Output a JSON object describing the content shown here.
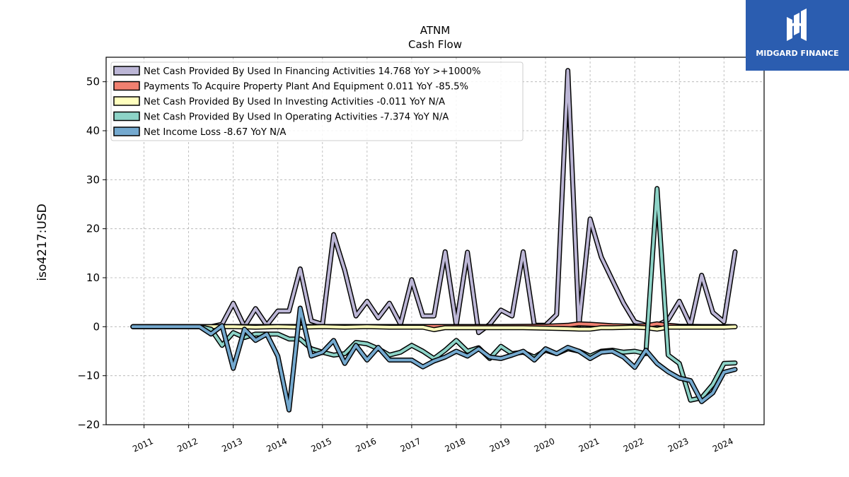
{
  "chart_data": {
    "type": "line",
    "title": "ATNM",
    "subtitle": "Cash Flow",
    "ylabel": "iso4217:USD",
    "xlabel": "",
    "ylim": [
      -20,
      55
    ],
    "xlim": [
      2010.15,
      2024.9
    ],
    "yticks": [
      -20,
      -10,
      0,
      10,
      20,
      30,
      40,
      50
    ],
    "xtick_values": [
      2011,
      2012,
      2013,
      2014,
      2015,
      2016,
      2017,
      2018,
      2019,
      2020,
      2021,
      2022,
      2023,
      2024
    ],
    "grid": true,
    "legend_position": "top-left",
    "series": [
      {
        "name": "Net Cash Provided By Used In Financing Activities",
        "legend_label": "Net Cash Provided By Used In Financing Activities  14.768 YoY >+1000%",
        "color": "#bcb6d6",
        "x": [
          2010.75,
          2011.0,
          2011.25,
          2011.5,
          2011.75,
          2012.0,
          2012.25,
          2012.5,
          2012.75,
          2013.0,
          2013.25,
          2013.5,
          2013.75,
          2014.0,
          2014.25,
          2014.5,
          2014.75,
          2015.0,
          2015.25,
          2015.5,
          2015.75,
          2016.0,
          2016.25,
          2016.5,
          2016.75,
          2017.0,
          2017.25,
          2017.5,
          2017.75,
          2018.0,
          2018.25,
          2018.5,
          2018.75,
          2019.0,
          2019.25,
          2019.5,
          2019.75,
          2020.0,
          2020.25,
          2020.5,
          2020.75,
          2021.0,
          2021.25,
          2021.5,
          2021.75,
          2022.0,
          2022.25,
          2022.5,
          2022.75,
          2023.0,
          2023.25,
          2023.5,
          2023.75,
          2024.0,
          2024.25
        ],
        "y": [
          0,
          0,
          0,
          0,
          0,
          0,
          0,
          0,
          0.5,
          4.8,
          0,
          3.7,
          0.3,
          3.2,
          3.2,
          11.8,
          1.2,
          0.5,
          18.8,
          11.5,
          2.2,
          5.2,
          1.8,
          4.8,
          0.5,
          9.6,
          2.2,
          2.2,
          15.3,
          0.3,
          15.2,
          -1.2,
          0.5,
          3.4,
          2.2,
          15.3,
          0.3,
          0.3,
          2.5,
          52.3,
          0.3,
          22.0,
          14.2,
          9.5,
          4.8,
          1.0,
          0.3,
          0.3,
          1.4,
          5.2,
          0.3,
          10.5,
          2.9,
          1.0,
          15.3
        ]
      },
      {
        "name": "Payments To Acquire Property Plant And Equipment",
        "legend_label": "Payments To Acquire Property Plant And Equipment  0.011 YoY -85.5%",
        "color": "#f08070",
        "x": [
          2010.75,
          2011.0,
          2011.5,
          2012.0,
          2012.5,
          2013.0,
          2014.0,
          2015.0,
          2016.0,
          2017.0,
          2018.0,
          2019.0,
          2020.0,
          2020.5,
          2020.75,
          2021.0,
          2021.5,
          2022.0,
          2022.25,
          2022.5,
          2022.75,
          2023.0,
          2023.5,
          2024.0,
          2024.25
        ],
        "y": [
          0,
          0,
          0,
          0,
          0,
          0.05,
          0.05,
          0.05,
          0.05,
          0.05,
          0.05,
          0.05,
          0.1,
          0.3,
          0.6,
          0.5,
          0.2,
          0.1,
          0.2,
          0.6,
          0.3,
          0.1,
          0.05,
          0.05,
          0.01
        ]
      },
      {
        "name": "Net Cash Provided By Used In Investing Activities",
        "legend_label": "Net Cash Provided By Used In Investing Activities  -0.011 YoY N/A",
        "color": "#ffffbe",
        "x": [
          2010.75,
          2011.0,
          2011.5,
          2012.0,
          2012.5,
          2013.0,
          2013.5,
          2014.0,
          2014.5,
          2015.0,
          2015.5,
          2016.0,
          2016.5,
          2017.0,
          2017.25,
          2017.5,
          2017.75,
          2018.0,
          2018.5,
          2019.0,
          2019.5,
          2020.0,
          2020.5,
          2020.75,
          2021.0,
          2021.25,
          2021.5,
          2022.0,
          2022.25,
          2022.5,
          2022.75,
          2023.0,
          2023.5,
          2024.0,
          2024.25
        ],
        "y": [
          0,
          0,
          0,
          0,
          0,
          0,
          -0.1,
          0,
          -0.1,
          0,
          -0.1,
          0,
          -0.1,
          -0.1,
          -0.1,
          -0.6,
          -0.2,
          -0.2,
          -0.2,
          -0.2,
          -0.2,
          -0.3,
          -0.4,
          -0.5,
          -0.5,
          -0.2,
          -0.2,
          -0.1,
          -0.2,
          -0.5,
          -0.1,
          -0.1,
          -0.1,
          -0.1,
          -0.01
        ]
      },
      {
        "name": "Net Cash Provided By Used In Operating Activities",
        "legend_label": "Net Cash Provided By Used In Operating Activities  -7.374 YoY N/A",
        "color": "#8dd3c7",
        "x": [
          2010.75,
          2011.0,
          2011.25,
          2011.5,
          2011.75,
          2012.0,
          2012.25,
          2012.5,
          2012.75,
          2013.0,
          2013.25,
          2013.5,
          2013.75,
          2014.0,
          2014.25,
          2014.5,
          2014.75,
          2015.0,
          2015.25,
          2015.5,
          2015.75,
          2016.0,
          2016.25,
          2016.5,
          2016.75,
          2017.0,
          2017.25,
          2017.5,
          2017.75,
          2018.0,
          2018.25,
          2018.5,
          2018.75,
          2019.0,
          2019.25,
          2019.5,
          2019.75,
          2020.0,
          2020.25,
          2020.5,
          2020.75,
          2021.0,
          2021.25,
          2021.5,
          2021.75,
          2022.0,
          2022.25,
          2022.5,
          2022.75,
          2023.0,
          2023.25,
          2023.5,
          2023.75,
          2024.0,
          2024.25
        ],
        "y": [
          0,
          0,
          0,
          0,
          0,
          0,
          0,
          -0.5,
          -3.8,
          -1.2,
          -2.2,
          -1.5,
          -1.5,
          -1.5,
          -2.5,
          -2.5,
          -4.5,
          -5.2,
          -5.8,
          -5.5,
          -3.2,
          -3.5,
          -4.5,
          -5.8,
          -5.2,
          -3.8,
          -5.0,
          -6.5,
          -4.8,
          -2.8,
          -5.0,
          -4.3,
          -6.5,
          -4.0,
          -5.5,
          -5.2,
          -6.2,
          -4.8,
          -5.5,
          -4.5,
          -5.0,
          -6.0,
          -5.0,
          -4.8,
          -5.2,
          -5.0,
          -5.5,
          28.2,
          -5.8,
          -7.5,
          -15.0,
          -14.5,
          -11.8,
          -7.5,
          -7.4
        ]
      },
      {
        "name": "Net Income Loss",
        "legend_label": "Net Income Loss  -8.67 YoY N/A",
        "color": "#74a9cf",
        "x": [
          2010.75,
          2011.0,
          2011.25,
          2011.5,
          2011.75,
          2012.0,
          2012.25,
          2012.5,
          2012.75,
          2013.0,
          2013.25,
          2013.5,
          2013.75,
          2014.0,
          2014.25,
          2014.5,
          2014.75,
          2015.0,
          2015.25,
          2015.5,
          2015.75,
          2016.0,
          2016.25,
          2016.5,
          2016.75,
          2017.0,
          2017.25,
          2017.5,
          2017.75,
          2018.0,
          2018.25,
          2018.5,
          2018.75,
          2019.0,
          2019.25,
          2019.5,
          2019.75,
          2020.0,
          2020.25,
          2020.5,
          2020.75,
          2021.0,
          2021.25,
          2021.5,
          2021.75,
          2022.0,
          2022.25,
          2022.5,
          2022.75,
          2023.0,
          2023.25,
          2023.5,
          2023.75,
          2024.0,
          2024.25
        ],
        "y": [
          0,
          0,
          0,
          0,
          0,
          0,
          0,
          -1.5,
          0.2,
          -8.5,
          -0.5,
          -2.8,
          -1.5,
          -6.0,
          -17.0,
          3.8,
          -6.0,
          -5.2,
          -2.8,
          -7.5,
          -3.8,
          -6.8,
          -4.2,
          -6.8,
          -6.8,
          -6.8,
          -8.2,
          -7.0,
          -6.2,
          -5.0,
          -6.0,
          -4.5,
          -6.2,
          -6.5,
          -5.8,
          -5.0,
          -6.8,
          -4.5,
          -5.5,
          -4.2,
          -5.0,
          -6.5,
          -5.2,
          -5.0,
          -6.2,
          -8.3,
          -4.8,
          -7.5,
          -9.2,
          -10.5,
          -11.0,
          -15.3,
          -13.5,
          -9.3,
          -8.7
        ]
      }
    ]
  },
  "logo": {
    "text": "MIDGARD FINANCE",
    "color": "#2b5db0"
  }
}
